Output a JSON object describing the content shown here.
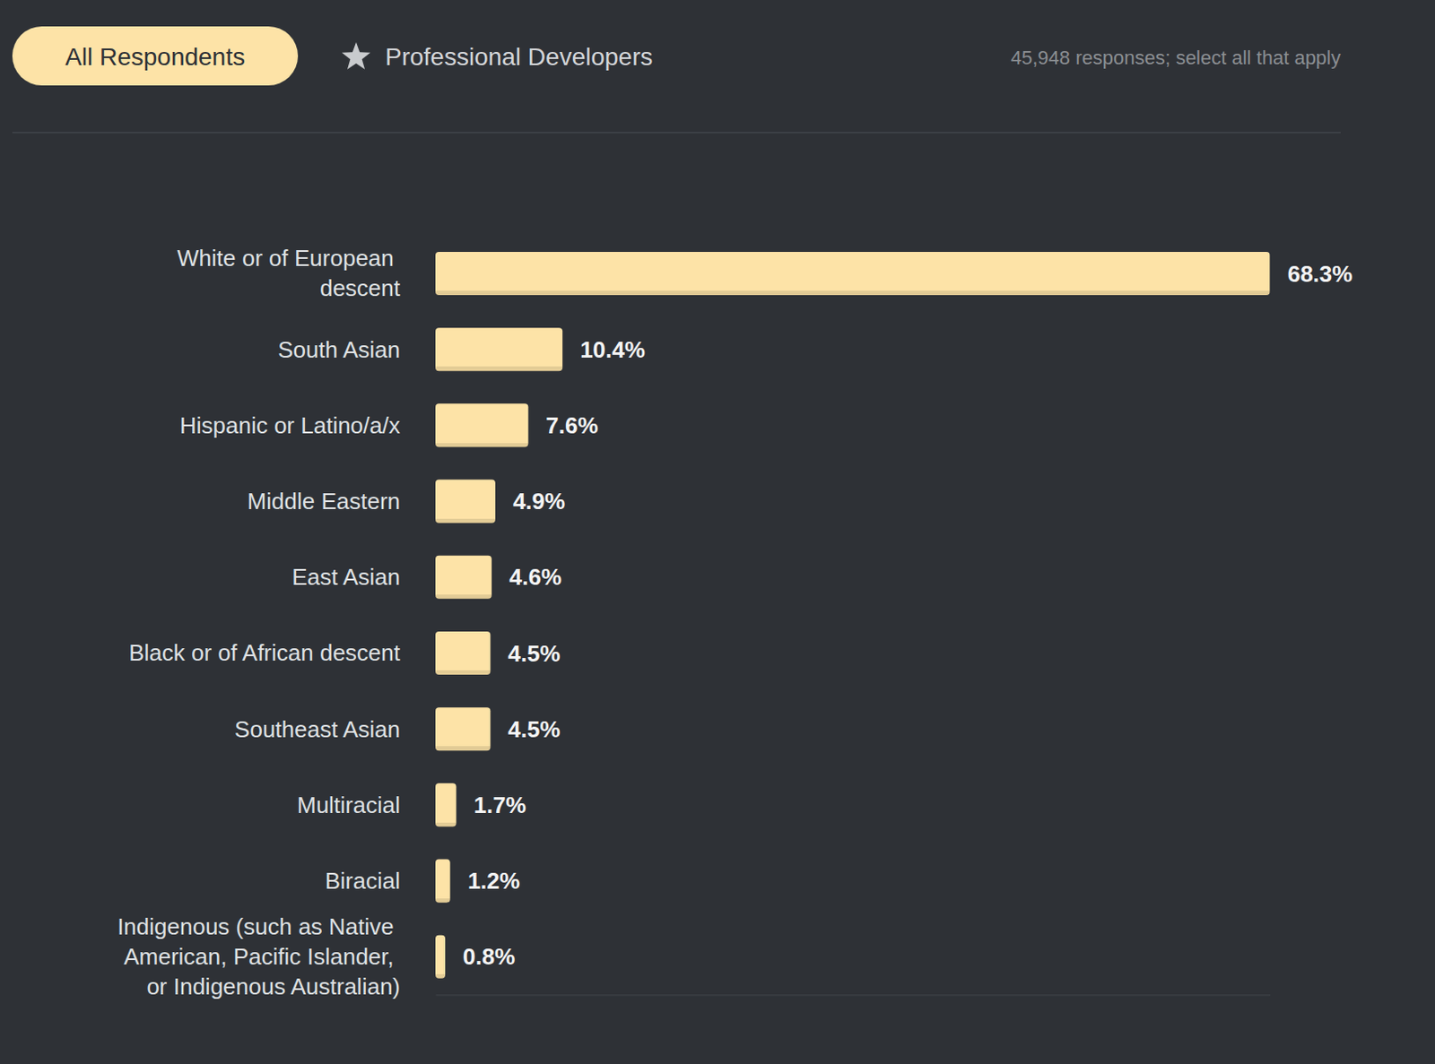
{
  "chart_data": {
    "type": "bar",
    "orientation": "horizontal",
    "tabs": [
      "All Respondents",
      "Professional Developers"
    ],
    "subtitle": "45,948 responses; select all that apply",
    "categories": [
      "White or of European descent",
      "South Asian",
      "Hispanic or Latino/a/x",
      "Middle Eastern",
      "East Asian",
      "Black or of African descent",
      "Southeast Asian",
      "Multiracial",
      "Biracial",
      "Indigenous (such as Native American, Pacific Islander, or Indigenous Australian)"
    ],
    "values": [
      68.3,
      10.4,
      7.6,
      4.9,
      4.6,
      4.5,
      4.5,
      1.7,
      1.2,
      0.8
    ],
    "value_labels": [
      "68.3%",
      "10.4%",
      "7.6%",
      "4.9%",
      "4.6%",
      "4.5%",
      "4.5%",
      "1.7%",
      "1.2%",
      "0.8%"
    ],
    "data_labels": true,
    "color": "#fde3a7",
    "xlim": [
      0,
      68.3
    ],
    "xticks": [],
    "tick_labels": "y",
    "grid": false
  }
}
